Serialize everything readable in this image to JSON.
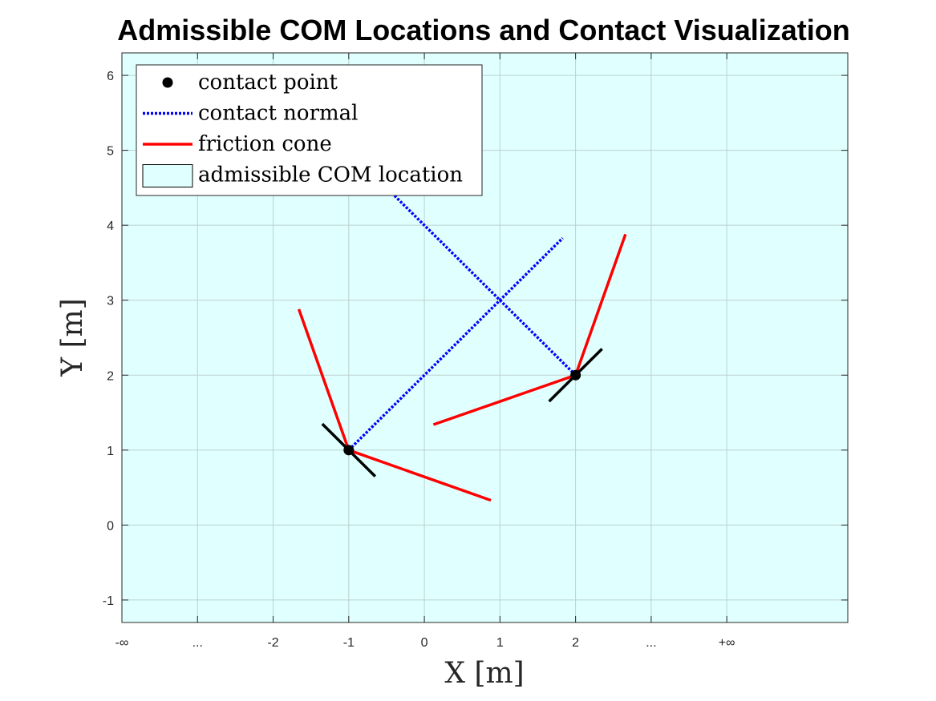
{
  "chart_data": {
    "type": "line",
    "title": "Admissible COM Locations and Contact Visualization",
    "xlabel": "X [m]",
    "ylabel": "Y [m]",
    "xlim": [
      -4.0,
      5.6
    ],
    "ylim": [
      -1.3,
      6.3
    ],
    "x_ticks": [
      {
        "value": -4,
        "label": "-∞"
      },
      {
        "value": -3,
        "label": "..."
      },
      {
        "value": -2,
        "label": "-2"
      },
      {
        "value": -1,
        "label": "-1"
      },
      {
        "value": 0,
        "label": "0"
      },
      {
        "value": 1,
        "label": "1"
      },
      {
        "value": 2,
        "label": "2"
      },
      {
        "value": 3,
        "label": "..."
      },
      {
        "value": 4,
        "label": "+∞"
      }
    ],
    "y_ticks": [
      {
        "value": -1,
        "label": "-1"
      },
      {
        "value": 0,
        "label": "0"
      },
      {
        "value": 1,
        "label": "1"
      },
      {
        "value": 2,
        "label": "2"
      },
      {
        "value": 3,
        "label": "3"
      },
      {
        "value": 4,
        "label": "4"
      },
      {
        "value": 5,
        "label": "5"
      },
      {
        "value": 6,
        "label": "6"
      }
    ],
    "grid": true,
    "background_color": "#e0ffff",
    "legend_position": "top-left",
    "legend": [
      {
        "label": "contact point",
        "kind": "marker",
        "color": "#000000"
      },
      {
        "label": "contact normal",
        "kind": "dotted",
        "color": "#0000ff"
      },
      {
        "label": "friction cone",
        "kind": "solid",
        "color": "#ff0000"
      },
      {
        "label": "admissible COM location",
        "kind": "patch",
        "color": "#e0ffff"
      }
    ],
    "contact_points": [
      {
        "x": -1,
        "y": 1
      },
      {
        "x": 2,
        "y": 2
      }
    ],
    "contact_normals": [
      {
        "x": [
          -1,
          1.83
        ],
        "y": [
          1,
          3.83
        ]
      },
      {
        "x": [
          2,
          -0.4
        ],
        "y": [
          2,
          4.4
        ]
      }
    ],
    "friction_cone": [
      {
        "x": [
          -1,
          -1.66
        ],
        "y": [
          1,
          2.88
        ]
      },
      {
        "x": [
          -1,
          0.88
        ],
        "y": [
          1,
          0.33
        ]
      },
      {
        "x": [
          2,
          0.12
        ],
        "y": [
          2,
          1.34
        ]
      },
      {
        "x": [
          2,
          2.66
        ],
        "y": [
          2,
          3.88
        ]
      }
    ],
    "surfaces": [
      {
        "x": [
          -1.35,
          -0.65
        ],
        "y": [
          1.35,
          0.65
        ]
      },
      {
        "x": [
          1.65,
          2.35
        ],
        "y": [
          1.65,
          2.35
        ]
      }
    ]
  }
}
